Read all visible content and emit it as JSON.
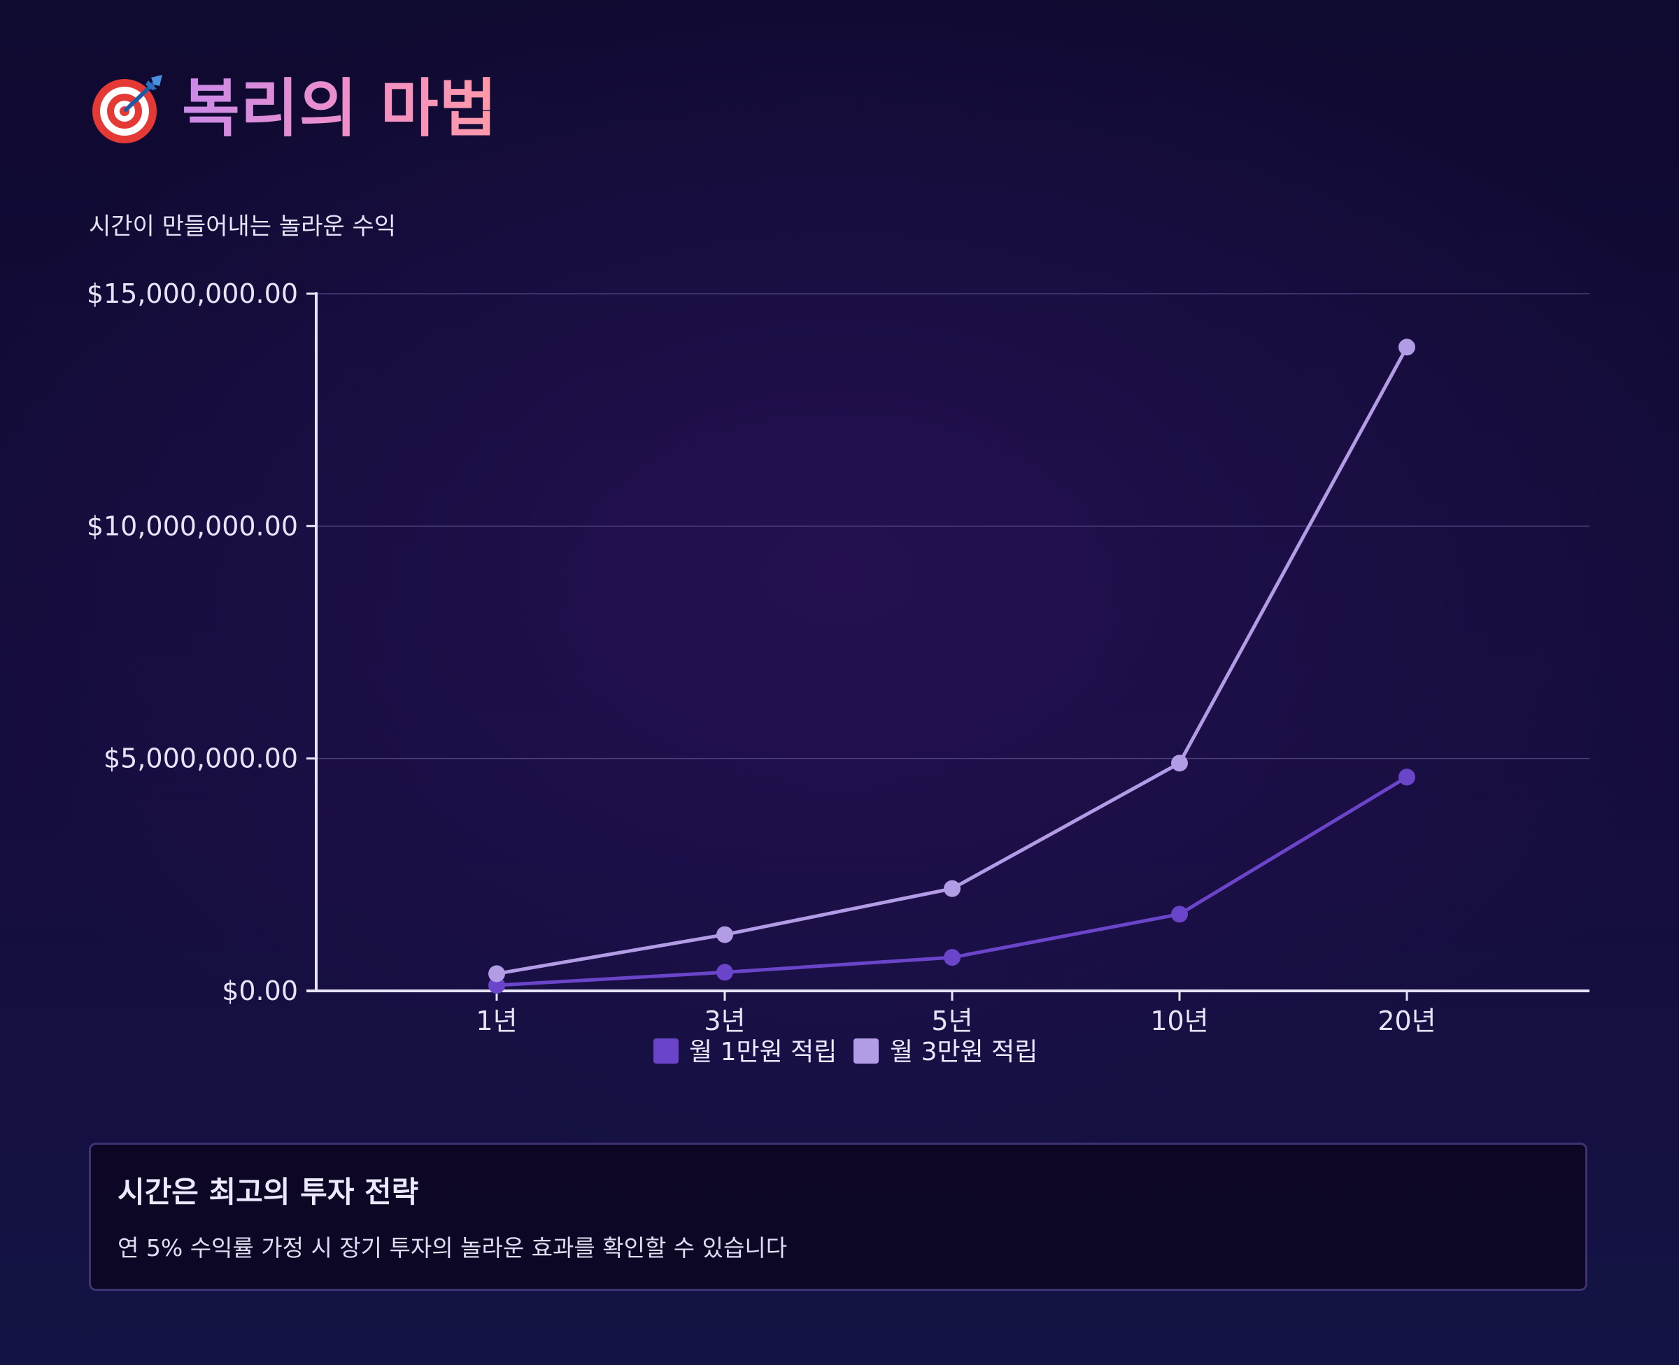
{
  "header": {
    "icon": "target-dart-icon",
    "title": "복리의 마법",
    "subtitle": "시간이 만들어내는 놀라운 수익"
  },
  "chart_data": {
    "type": "line",
    "categories": [
      "1년",
      "3년",
      "5년",
      "10년",
      "20년"
    ],
    "series": [
      {
        "name": "월 1만원 적립",
        "color": "#6a45c9",
        "values": [
          120000,
          400000,
          720000,
          1650000,
          4600000
        ]
      },
      {
        "name": "월 3만원 적립",
        "color": "#b39ce6",
        "values": [
          370000,
          1210000,
          2200000,
          4900000,
          13850000
        ]
      }
    ],
    "ylim": [
      0,
      15000000
    ],
    "yticks": [
      0,
      5000000,
      10000000,
      15000000
    ],
    "ytick_labels": [
      "$0.00",
      "$5,000,000.00",
      "$10,000,000.00",
      "$15,000,000.00"
    ],
    "grid": true,
    "legend": "bottom-center"
  },
  "info": {
    "title": "시간은 최고의 투자 전략",
    "description": "연 5% 수익률 가정 시 장기 투자의 놀라운 효과를 확인할 수 있습니다"
  }
}
